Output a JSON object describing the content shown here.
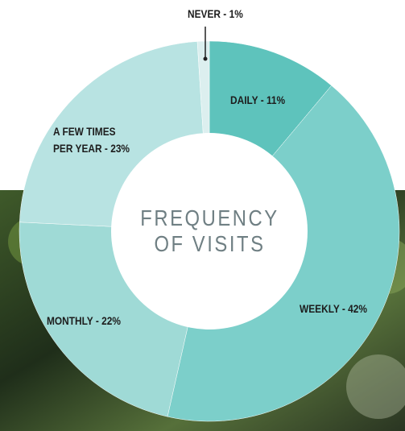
{
  "chart_data": {
    "type": "pie",
    "title": "FREQUENCY\nOF VISITS",
    "values": [
      11,
      42,
      22,
      23,
      1
    ],
    "value_labels": [
      "DAILY - 11%",
      "WEEKLY - 42%",
      "MONTHLY - 22%",
      "A FEW TIMES\nPER YEAR - 23%",
      "NEVER - 1%"
    ],
    "colors": [
      "#5ec3bc",
      "#7ccfca",
      "#9fdad6",
      "#b8e3e2",
      "#dcefef"
    ]
  }
}
